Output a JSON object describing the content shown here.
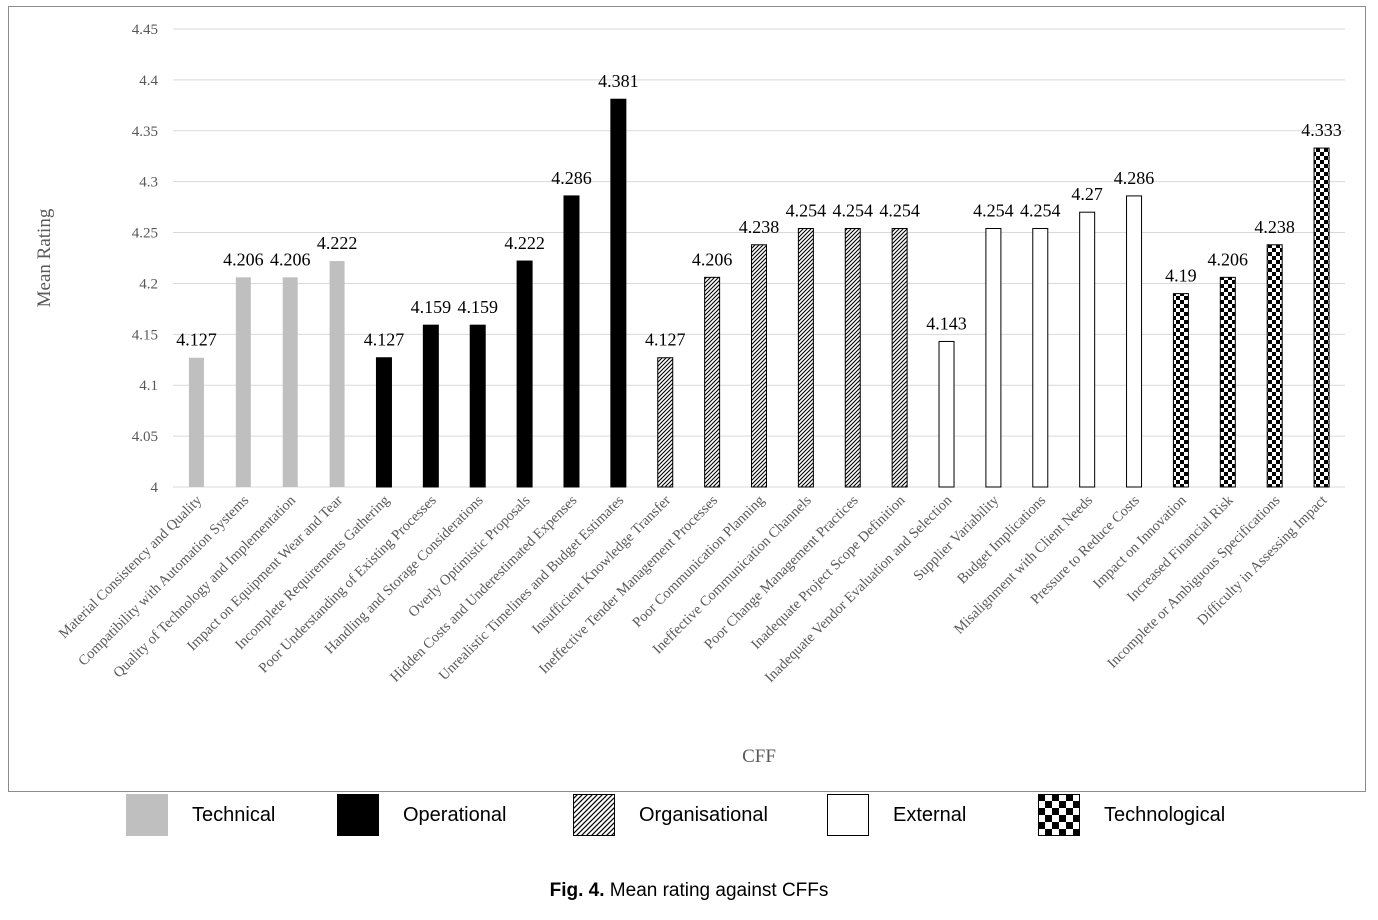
{
  "chart_data": {
    "type": "bar",
    "xlabel": "CFF",
    "ylabel": "Mean Rating",
    "ylim": [
      4,
      4.45
    ],
    "yticks": [
      "4",
      "4.05",
      "4.1",
      "4.15",
      "4.2",
      "4.25",
      "4.3",
      "4.35",
      "4.4",
      "4.45"
    ],
    "grid": true,
    "legend_position": "bottom",
    "categories": [
      "Material Consistency and Quality",
      "Compatibility with Automation Systems",
      "Quality of Technology and Implementation",
      "Impact on Equipment Wear and Tear",
      "Incomplete Requirements Gathering",
      "Poor Understanding of Existing Processes",
      "Handling and Storage Considerations",
      "Overly Optimistic Proposals",
      "Hidden Costs and Underestimated Expenses",
      "Unrealistic Timelines and Budget Estimates",
      "Insufficient Knowledge Transfer",
      "Ineffective Tender Management Processes",
      "Poor Communication Planning",
      "Ineffective Communication Channels",
      "Poor Change Management Practices",
      "Inadequate Project Scope Definition",
      "Inadequate Vendor Evaluation and Selection",
      "Supplier Variability",
      "Budget Implications",
      "Misalignment with Client Needs",
      "Pressure to Reduce Costs",
      "Impact on Innovation",
      "Increased Financial Risk",
      "Incomplete or Ambiguous Specifications",
      "Difficulty in Assessing Impact"
    ],
    "values": [
      4.127,
      4.206,
      4.206,
      4.222,
      4.127,
      4.159,
      4.159,
      4.222,
      4.286,
      4.381,
      4.127,
      4.206,
      4.238,
      4.254,
      4.254,
      4.254,
      4.143,
      4.254,
      4.254,
      4.27,
      4.286,
      4.19,
      4.206,
      4.238,
      4.333
    ],
    "value_labels": [
      "4.127",
      "4.206",
      "4.206",
      "4.222",
      "4.127",
      "4.159",
      "4.159",
      "4.222",
      "4.286",
      "4.381",
      "4.127",
      "4.206",
      "4.238",
      "4.254",
      "4.254",
      "4.254",
      "4.143",
      "4.254",
      "4.254",
      "4.27",
      "4.286",
      "4.19",
      "4.206",
      "4.238",
      "4.333"
    ],
    "groups": [
      0,
      0,
      0,
      0,
      1,
      1,
      1,
      1,
      1,
      1,
      2,
      2,
      2,
      2,
      2,
      2,
      3,
      3,
      3,
      3,
      3,
      4,
      4,
      4,
      4
    ],
    "legend": [
      {
        "name": "Technical",
        "fill": "solid-grey",
        "color": "#bfbfbf"
      },
      {
        "name": "Operational",
        "fill": "solid-black",
        "color": "#000000"
      },
      {
        "name": "Organisational",
        "fill": "diagonal-hatch",
        "color": "#000000"
      },
      {
        "name": "External",
        "fill": "white",
        "color": "#ffffff"
      },
      {
        "name": "Technological",
        "fill": "checkerboard",
        "color": "#000000"
      }
    ]
  },
  "caption": {
    "label": "Fig. 4.",
    "text": " Mean rating against CFFs"
  }
}
